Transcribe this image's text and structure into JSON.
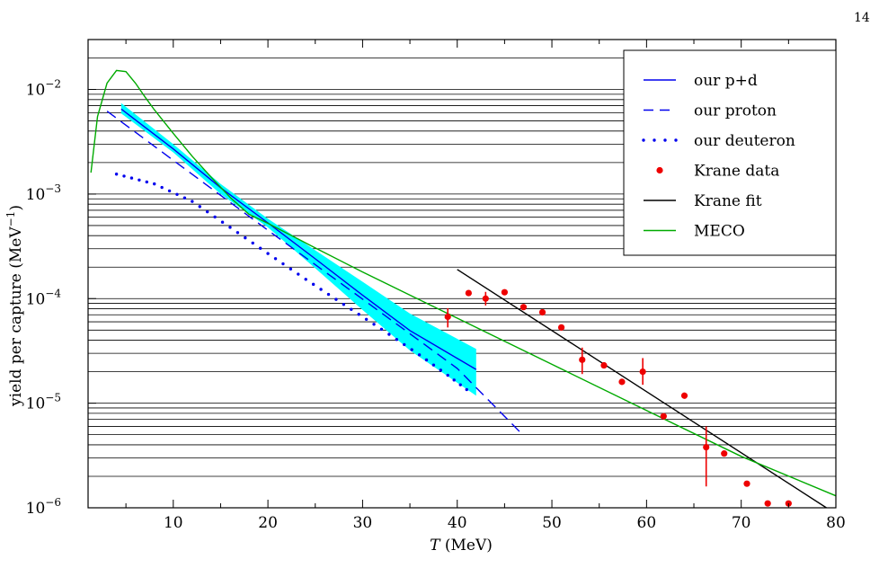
{
  "page": {
    "number": "14"
  },
  "chart_data": {
    "type": "line",
    "title": "",
    "xlabel_italic": "T",
    "xlabel_unit": " (MeV)",
    "ylabel": "yield per capture (MeV",
    "ylabel_sup": "−1",
    "ylabel_close": ")",
    "xlim": [
      1,
      80
    ],
    "ylim": [
      1e-06,
      0.03
    ],
    "yscale": "log",
    "grid": "horizontal minor and major lines",
    "x_ticks": [
      10,
      20,
      30,
      40,
      50,
      60,
      70,
      80
    ],
    "y_ticks": [
      {
        "value": 1e-06,
        "base": "10",
        "exp": "−6"
      },
      {
        "value": 1e-05,
        "base": "10",
        "exp": "−5"
      },
      {
        "value": 0.0001,
        "base": "10",
        "exp": "−4"
      },
      {
        "value": 0.001,
        "base": "10",
        "exp": "−3"
      },
      {
        "value": 0.01,
        "base": "10",
        "exp": "−2"
      }
    ],
    "legend": {
      "placement": "top-right",
      "entries": [
        {
          "label": "our p+d",
          "style": "solid",
          "color": "#0000ee"
        },
        {
          "label": "our proton",
          "style": "dashed",
          "color": "#0000ee"
        },
        {
          "label": "our deuteron",
          "style": "dotted",
          "color": "#0000ee"
        },
        {
          "label": "Krane data",
          "style": "marker",
          "color": "#ee0000"
        },
        {
          "label": "Krane fit",
          "style": "solid",
          "color": "#000000"
        },
        {
          "label": "MECO",
          "style": "solid",
          "color": "#00aa00"
        }
      ]
    },
    "colors": {
      "band": "#00ffff",
      "blue": "#0000ee",
      "red": "#ee0000",
      "black": "#000000",
      "green": "#00aa00"
    },
    "series": [
      {
        "name": "our p+d",
        "style": "solid",
        "color": "#0000ee",
        "x": [
          4.5,
          10,
          15,
          20,
          25,
          30,
          35,
          42
        ],
        "y": [
          0.0065,
          0.0027,
          0.00115,
          0.00053,
          0.00024,
          0.000108,
          4.95e-05,
          2.1e-05
        ]
      },
      {
        "name": "our p+d uncertainty band",
        "style": "band",
        "color": "#00ffff",
        "x": [
          4.5,
          10,
          15,
          20,
          25,
          30,
          35,
          42
        ],
        "y_low": [
          0.0059,
          0.0025,
          0.001,
          0.00048,
          0.000195,
          7.8e-05,
          3.2e-05,
          1.18e-05
        ],
        "y_high": [
          0.0074,
          0.003,
          0.00125,
          0.00058,
          0.00029,
          0.000145,
          7.2e-05,
          3.3e-05
        ]
      },
      {
        "name": "our proton",
        "style": "dashed",
        "color": "#0000ee",
        "x": [
          3,
          10,
          20,
          30,
          40,
          47
        ],
        "y": [
          0.0062,
          0.0021,
          0.00045,
          9.9e-05,
          2.15e-05,
          4.9e-06
        ]
      },
      {
        "name": "our deuteron",
        "style": "dotted",
        "color": "#0000ee",
        "x": [
          4,
          8,
          12,
          16,
          20,
          24,
          28,
          32,
          36,
          39,
          41
        ],
        "y": [
          0.00155,
          0.00125,
          0.00085,
          0.00048,
          0.00027,
          0.000153,
          8.8e-05,
          5.1e-05,
          2.9e-05,
          1.85e-05,
          1.35e-05
        ]
      },
      {
        "name": "Krane fit",
        "style": "solid",
        "color": "#000000",
        "x": [
          40,
          79
        ],
        "y": [
          0.00019,
          1e-06
        ]
      },
      {
        "name": "MECO",
        "style": "solid",
        "color": "#00aa00",
        "x": [
          1.3,
          2,
          3,
          4,
          5,
          6,
          7,
          8,
          10,
          12,
          14,
          16,
          18,
          20,
          25,
          30,
          35,
          40,
          50,
          60,
          70,
          80
        ],
        "y": [
          0.0016,
          0.0055,
          0.0115,
          0.0152,
          0.0148,
          0.0115,
          0.0085,
          0.0064,
          0.0038,
          0.0023,
          0.00145,
          0.00093,
          0.00064,
          0.000525,
          0.000305,
          0.00018,
          0.000108,
          6.5e-05,
          2.35e-05,
          8.5e-06,
          3.1e-06,
          1.3e-06
        ]
      },
      {
        "name": "Krane data",
        "style": "marker",
        "color": "#ee0000",
        "points": [
          {
            "x": 39,
            "y": 6.7e-05,
            "lo": 5.3e-05,
            "hi": 8.1e-05
          },
          {
            "x": 41.2,
            "y": 0.000113
          },
          {
            "x": 43,
            "y": 0.0001,
            "lo": 8.6e-05,
            "hi": 0.000116
          },
          {
            "x": 45,
            "y": 0.000115
          },
          {
            "x": 47,
            "y": 8.3e-05
          },
          {
            "x": 49,
            "y": 7.4e-05
          },
          {
            "x": 51,
            "y": 5.3e-05
          },
          {
            "x": 53.2,
            "y": 2.6e-05,
            "lo": 1.9e-05,
            "hi": 3.4e-05
          },
          {
            "x": 55.5,
            "y": 2.3e-05
          },
          {
            "x": 57.4,
            "y": 1.6e-05
          },
          {
            "x": 59.6,
            "y": 2e-05,
            "lo": 1.5e-05,
            "hi": 2.7e-05
          },
          {
            "x": 61.8,
            "y": 7.5e-06
          },
          {
            "x": 64,
            "y": 1.18e-05
          },
          {
            "x": 66.3,
            "y": 3.8e-06,
            "lo": 1.6e-06,
            "hi": 6e-06
          },
          {
            "x": 68.2,
            "y": 3.3e-06
          },
          {
            "x": 70.6,
            "y": 1.7e-06
          },
          {
            "x": 72.8,
            "y": 1.1e-06
          },
          {
            "x": 75,
            "y": 1.1e-06
          }
        ]
      }
    ]
  }
}
